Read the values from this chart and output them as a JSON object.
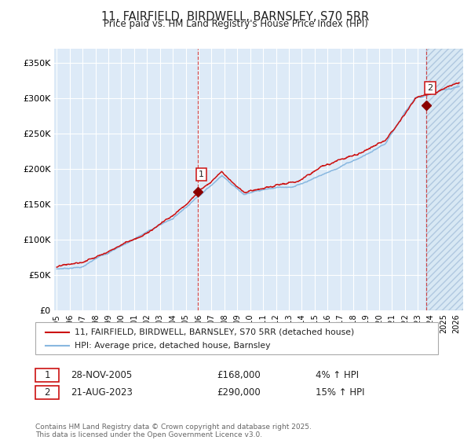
{
  "title": "11, FAIRFIELD, BIRDWELL, BARNSLEY, S70 5RR",
  "subtitle": "Price paid vs. HM Land Registry's House Price Index (HPI)",
  "bg_color": "#ddeaf7",
  "hpi_color": "#89b8e0",
  "price_color": "#cc1111",
  "marker_color": "#8b0000",
  "ylim": [
    0,
    370000
  ],
  "yticks": [
    0,
    50000,
    100000,
    150000,
    200000,
    250000,
    300000,
    350000
  ],
  "ytick_labels": [
    "£0",
    "£50K",
    "£100K",
    "£150K",
    "£200K",
    "£250K",
    "£300K",
    "£350K"
  ],
  "sale1_year": 2005.91,
  "sale1_price": 168000,
  "sale2_year": 2023.64,
  "sale2_price": 290000,
  "legend_line1": "11, FAIRFIELD, BIRDWELL, BARNSLEY, S70 5RR (detached house)",
  "legend_line2": "HPI: Average price, detached house, Barnsley",
  "annotation1_date": "28-NOV-2005",
  "annotation1_price": "£168,000",
  "annotation1_hpi": "4% ↑ HPI",
  "annotation2_date": "21-AUG-2023",
  "annotation2_price": "£290,000",
  "annotation2_hpi": "15% ↑ HPI",
  "footer": "Contains HM Land Registry data © Crown copyright and database right 2025.\nThis data is licensed under the Open Government Licence v3.0.",
  "xstart": 1994.8,
  "xend": 2026.5
}
